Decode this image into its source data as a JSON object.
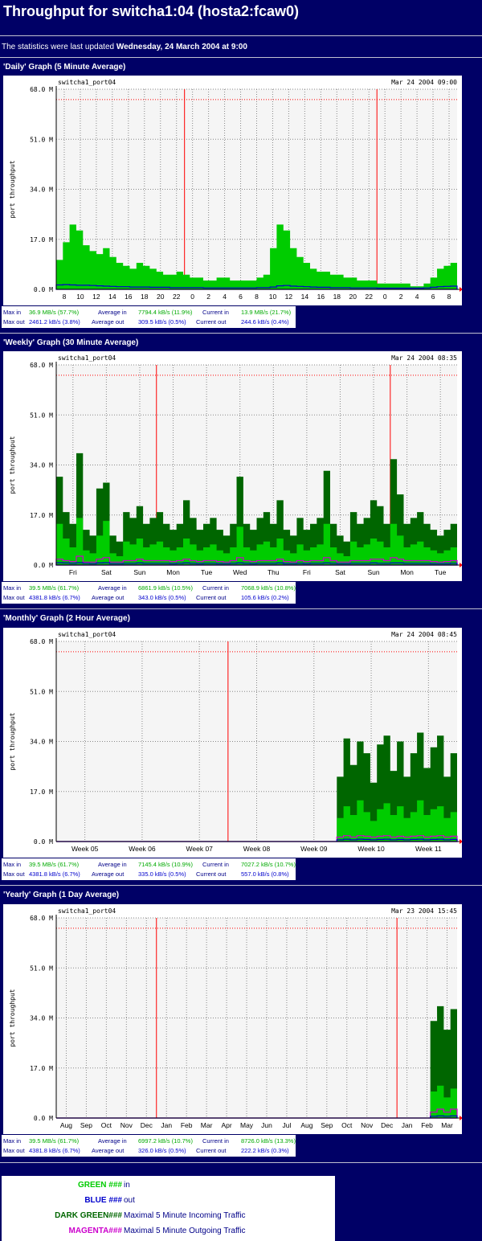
{
  "page": {
    "title": "Throughput for switcha1:04 (hosta2:fcaw0)",
    "updated_prefix": "The statistics were last updated",
    "updated_value": "Wednesday, 24 March 2004 at 9:00"
  },
  "chart_data": [
    {
      "type": "area",
      "section_title": "'Daily' Graph (5 Minute Average)",
      "plot_label": "switcha1_port04",
      "timestamp": "Mar 24 2004 09:00",
      "ylabel": "port throughput",
      "ylim": [
        0,
        68
      ],
      "yticks": [
        "0.0 M",
        "17.0 M",
        "34.0 M",
        "51.0 M",
        "68.0 M"
      ],
      "x_ticks": [
        "8",
        "10",
        "12",
        "14",
        "16",
        "18",
        "20",
        "22",
        "0",
        "2",
        "4",
        "6",
        "8",
        "10",
        "12",
        "14",
        "16",
        "18",
        "20",
        "22",
        "0",
        "2",
        "4",
        "6",
        "8"
      ],
      "dividers_at": [
        "0",
        "0"
      ],
      "max_line": 64.5,
      "series": [
        {
          "name": "in",
          "color": "#00cc00",
          "values": [
            10,
            16,
            22,
            20,
            15,
            13,
            12,
            14,
            11,
            9,
            8,
            7,
            9,
            8,
            7,
            6,
            5,
            5,
            6,
            5,
            4,
            4,
            3,
            3,
            4,
            4,
            3,
            3,
            3,
            3,
            4,
            5,
            14,
            22,
            20,
            14,
            11,
            9,
            7,
            6,
            6,
            5,
            5,
            4,
            4,
            3,
            3,
            3,
            2,
            2,
            2,
            2,
            2,
            1,
            1,
            2,
            4,
            7,
            8,
            9
          ]
        },
        {
          "name": "out",
          "color": "#0000cc",
          "values": [
            1.5,
            1.6,
            1.5,
            1.4,
            1.4,
            1.3,
            1.2,
            1.1,
            1.0,
            0.9,
            0.9,
            0.8,
            0.8,
            0.8,
            0.7,
            0.7,
            0.7,
            0.6,
            0.6,
            0.6,
            0.6,
            0.6,
            0.5,
            0.5,
            0.5,
            0.5,
            0.5,
            0.5,
            0.5,
            0.5,
            0.6,
            0.6,
            0.8,
            1.2,
            1.3,
            1.1,
            1.0,
            0.9,
            0.8,
            0.7,
            0.7,
            0.6,
            0.6,
            0.6,
            0.5,
            0.5,
            0.5,
            0.5,
            0.4,
            0.4,
            0.4,
            0.4,
            0.4,
            0.4,
            0.4,
            0.5,
            0.7,
            0.9,
            1.0,
            1.1
          ]
        }
      ],
      "stats": {
        "max_in": "36.9 MB/s (57.7%)",
        "avg_in": "7794.4 kB/s (11.9%)",
        "cur_in": "13.9 MB/s (21.7%)",
        "max_out": "2461.2 kB/s (3.8%)",
        "avg_out": "309.5 kB/s (0.5%)",
        "cur_out": "244.6 kB/s (0.4%)"
      }
    },
    {
      "type": "area",
      "section_title": "'Weekly' Graph (30 Minute Average)",
      "plot_label": "switcha1_port04",
      "timestamp": "Mar 24 2004 08:35",
      "ylabel": "port throughput",
      "ylim": [
        0,
        68
      ],
      "yticks": [
        "0.0 M",
        "17.0 M",
        "34.0 M",
        "51.0 M",
        "68.0 M"
      ],
      "x_ticks": [
        "Fri",
        "Sat",
        "Sun",
        "Mon",
        "Tue",
        "Wed",
        "Thu",
        "Fri",
        "Sat",
        "Sun",
        "Mon",
        "Tue"
      ],
      "dividers_at": [
        "Mon",
        "Mon"
      ],
      "max_line": 64.5,
      "series": [
        {
          "name": "in",
          "color": "#00cc00",
          "values": [
            14,
            9,
            6,
            16,
            5,
            4,
            10,
            15,
            4,
            3,
            8,
            7,
            9,
            6,
            7,
            8,
            6,
            5,
            6,
            9,
            7,
            5,
            6,
            7,
            5,
            4,
            6,
            13,
            6,
            5,
            7,
            8,
            6,
            9,
            5,
            4,
            7,
            5,
            6,
            7,
            14,
            6,
            4,
            3,
            8,
            6,
            7,
            9,
            8,
            6,
            14,
            10,
            6,
            7,
            8,
            6,
            5,
            4,
            5,
            6
          ]
        },
        {
          "name": "out",
          "color": "#0000cc",
          "values": [
            0.8,
            0.7,
            0.6,
            0.8,
            0.6,
            0.5,
            0.7,
            0.8,
            0.5,
            0.5,
            0.6,
            0.6,
            0.7,
            0.6,
            0.6,
            0.6,
            0.6,
            0.5,
            0.6,
            0.7,
            0.6,
            0.5,
            0.6,
            0.6,
            0.5,
            0.5,
            0.6,
            0.7,
            0.6,
            0.5,
            0.6,
            0.6,
            0.6,
            0.7,
            0.5,
            0.5,
            0.6,
            0.5,
            0.6,
            0.6,
            0.7,
            0.6,
            0.5,
            0.5,
            0.6,
            0.6,
            0.6,
            0.7,
            0.6,
            0.6,
            0.7,
            0.7,
            0.6,
            0.6,
            0.6,
            0.6,
            0.5,
            0.5,
            0.5,
            0.6
          ]
        },
        {
          "name": "max in",
          "color": "#006600",
          "values": [
            30,
            18,
            14,
            38,
            12,
            10,
            26,
            28,
            10,
            8,
            18,
            16,
            20,
            14,
            16,
            18,
            14,
            12,
            14,
            22,
            16,
            12,
            14,
            16,
            12,
            10,
            14,
            30,
            14,
            12,
            16,
            18,
            14,
            22,
            12,
            10,
            16,
            12,
            14,
            16,
            32,
            14,
            10,
            8,
            18,
            14,
            16,
            22,
            20,
            14,
            36,
            24,
            14,
            16,
            18,
            14,
            12,
            10,
            12,
            14
          ]
        },
        {
          "name": "max out",
          "color": "#cc00cc",
          "values": [
            2,
            1.5,
            1.2,
            3,
            1,
            1,
            2,
            2.5,
            1,
            1,
            1.5,
            1.5,
            2,
            1.5,
            1.5,
            1.5,
            1.5,
            1.2,
            1.5,
            2,
            1.5,
            1.2,
            1.5,
            1.5,
            1.2,
            1,
            1.5,
            2.5,
            1.5,
            1.2,
            1.5,
            1.5,
            1.5,
            2,
            1.2,
            1,
            1.5,
            1.2,
            1.5,
            1.5,
            2.5,
            1.5,
            1,
            1,
            1.5,
            1.5,
            1.5,
            2,
            2,
            1.5,
            2.5,
            2,
            1.5,
            1.5,
            1.5,
            1.5,
            1.2,
            1,
            1.2,
            1.5
          ]
        }
      ],
      "stats": {
        "max_in": "39.5 MB/s (61.7%)",
        "avg_in": "6861.9 kB/s (10.5%)",
        "cur_in": "7068.9 kB/s (10.8%)",
        "max_out": "4381.8 kB/s (6.7%)",
        "avg_out": "343.0 kB/s (0.5%)",
        "cur_out": "105.6 kB/s (0.2%)"
      }
    },
    {
      "type": "area",
      "section_title": "'Monthly' Graph (2 Hour Average)",
      "plot_label": "switcha1_port04",
      "timestamp": "Mar 24 2004 08:45",
      "ylabel": "port throughput",
      "ylim": [
        0,
        68
      ],
      "yticks": [
        "0.0 M",
        "17.0 M",
        "34.0 M",
        "51.0 M",
        "68.0 M"
      ],
      "x_ticks": [
        "Week 05",
        "Week 06",
        "Week 07",
        "Week 08",
        "Week 09",
        "Week 10",
        "Week 11"
      ],
      "dividers_at": [
        "Week 08"
      ],
      "max_line": 64.5,
      "series": [
        {
          "name": "in",
          "color": "#00cc00",
          "values": [
            0,
            0,
            0,
            0,
            0,
            0,
            0,
            0,
            0,
            0,
            0,
            0,
            0,
            0,
            0,
            0,
            0,
            0,
            0,
            0,
            0,
            0,
            0,
            0,
            0,
            0,
            0,
            0,
            0,
            0,
            0,
            0,
            0,
            0,
            0,
            0,
            0,
            0,
            0,
            0,
            0,
            0,
            8,
            12,
            9,
            14,
            10,
            7,
            11,
            13,
            9,
            12,
            8,
            10,
            14,
            9,
            11,
            12,
            8,
            10
          ]
        },
        {
          "name": "out",
          "color": "#0000cc",
          "values": [
            0,
            0,
            0,
            0,
            0,
            0,
            0,
            0,
            0,
            0,
            0,
            0,
            0,
            0,
            0,
            0,
            0,
            0,
            0,
            0,
            0,
            0,
            0,
            0,
            0,
            0,
            0,
            0,
            0,
            0,
            0,
            0,
            0,
            0,
            0,
            0,
            0,
            0,
            0,
            0,
            0,
            0,
            0.6,
            0.8,
            0.6,
            0.8,
            0.7,
            0.6,
            0.7,
            0.8,
            0.6,
            0.7,
            0.6,
            0.7,
            0.8,
            0.6,
            0.7,
            0.8,
            0.6,
            0.7
          ]
        },
        {
          "name": "max in",
          "color": "#006600",
          "values": [
            0,
            0,
            0,
            0,
            0,
            0,
            0,
            0,
            0,
            0,
            0,
            0,
            0,
            0,
            0,
            0,
            0,
            0,
            0,
            0,
            0,
            0,
            0,
            0,
            0,
            0,
            0,
            0,
            0,
            0,
            0,
            0,
            0,
            0,
            0,
            0,
            0,
            0,
            0,
            0,
            0,
            0,
            22,
            35,
            26,
            34,
            30,
            20,
            33,
            36,
            24,
            34,
            22,
            30,
            37,
            25,
            32,
            36,
            22,
            30
          ]
        },
        {
          "name": "max out",
          "color": "#cc00cc",
          "values": [
            0,
            0,
            0,
            0,
            0,
            0,
            0,
            0,
            0,
            0,
            0,
            0,
            0,
            0,
            0,
            0,
            0,
            0,
            0,
            0,
            0,
            0,
            0,
            0,
            0,
            0,
            0,
            0,
            0,
            0,
            0,
            0,
            0,
            0,
            0,
            0,
            0,
            0,
            0,
            0,
            0,
            0,
            1.5,
            2,
            1.5,
            2,
            1.8,
            1.5,
            1.8,
            2,
            1.5,
            1.8,
            1.5,
            1.8,
            2,
            1.5,
            1.8,
            2,
            1.5,
            1.8
          ]
        }
      ],
      "stats": {
        "max_in": "39.5 MB/s (61.7%)",
        "avg_in": "7145.4 kB/s (10.9%)",
        "cur_in": "7027.2 kB/s (10.7%)",
        "max_out": "4381.8 kB/s (6.7%)",
        "avg_out": "335.0 kB/s (0.5%)",
        "cur_out": "557.0 kB/s (0.8%)"
      }
    },
    {
      "type": "area",
      "section_title": "'Yearly' Graph (1 Day Average)",
      "plot_label": "switcha1_port04",
      "timestamp": "Mar 23 2004 15:45",
      "ylabel": "port throughput",
      "ylim": [
        0,
        68
      ],
      "yticks": [
        "0.0 M",
        "17.0 M",
        "34.0 M",
        "51.0 M",
        "68.0 M"
      ],
      "x_ticks": [
        "Aug",
        "Sep",
        "Oct",
        "Nov",
        "Dec",
        "Jan",
        "Feb",
        "Mar",
        "Apr",
        "May",
        "Jun",
        "Jul",
        "Aug",
        "Sep",
        "Oct",
        "Nov",
        "Dec",
        "Jan",
        "Feb",
        "Mar"
      ],
      "dividers_at": [
        "Jan",
        "Jan"
      ],
      "max_line": 64.5,
      "series": [
        {
          "name": "in",
          "color": "#00cc00",
          "values": [
            0,
            0,
            0,
            0,
            0,
            0,
            0,
            0,
            0,
            0,
            0,
            0,
            0,
            0,
            0,
            0,
            0,
            0,
            0,
            0,
            0,
            0,
            0,
            0,
            0,
            0,
            0,
            0,
            0,
            0,
            0,
            0,
            0,
            0,
            0,
            0,
            0,
            0,
            0,
            0,
            0,
            0,
            0,
            0,
            0,
            0,
            0,
            0,
            0,
            0,
            0,
            0,
            0,
            0,
            0,
            0,
            9,
            11,
            7,
            10
          ]
        },
        {
          "name": "out",
          "color": "#0000cc",
          "values": [
            0,
            0,
            0,
            0,
            0,
            0,
            0,
            0,
            0,
            0,
            0,
            0,
            0,
            0,
            0,
            0,
            0,
            0,
            0,
            0,
            0,
            0,
            0,
            0,
            0,
            0,
            0,
            0,
            0,
            0,
            0,
            0,
            0,
            0,
            0,
            0,
            0,
            0,
            0,
            0,
            0,
            0,
            0,
            0,
            0,
            0,
            0,
            0,
            0,
            0,
            0,
            0,
            0,
            0,
            0,
            0,
            0.6,
            0.7,
            0.6,
            0.7
          ]
        },
        {
          "name": "max in",
          "color": "#006600",
          "values": [
            0,
            0,
            0,
            0,
            0,
            0,
            0,
            0,
            0,
            0,
            0,
            0,
            0,
            0,
            0,
            0,
            0,
            0,
            0,
            0,
            0,
            0,
            0,
            0,
            0,
            0,
            0,
            0,
            0,
            0,
            0,
            0,
            0,
            0,
            0,
            0,
            0,
            0,
            0,
            0,
            0,
            0,
            0,
            0,
            0,
            0,
            0,
            0,
            0,
            0,
            0,
            0,
            0,
            0,
            0,
            0,
            33,
            38,
            30,
            37
          ]
        },
        {
          "name": "max out",
          "color": "#cc00cc",
          "values": [
            0,
            0,
            0,
            0,
            0,
            0,
            0,
            0,
            0,
            0,
            0,
            0,
            0,
            0,
            0,
            0,
            0,
            0,
            0,
            0,
            0,
            0,
            0,
            0,
            0,
            0,
            0,
            0,
            0,
            0,
            0,
            0,
            0,
            0,
            0,
            0,
            0,
            0,
            0,
            0,
            0,
            0,
            0,
            0,
            0,
            0,
            0,
            0,
            0,
            0,
            0,
            0,
            0,
            0,
            0,
            0,
            2,
            3,
            2,
            3
          ]
        }
      ],
      "stats": {
        "max_in": "39.5 MB/s (61.7%)",
        "avg_in": "6997.2 kB/s (10.7%)",
        "cur_in": "8726.0 kB/s (13.3%)",
        "max_out": "4381.8 kB/s (6.7%)",
        "avg_out": "326.0 kB/s (0.5%)",
        "cur_out": "222.2 kB/s (0.3%)"
      }
    }
  ],
  "stat_labels": {
    "max_in": "Max in",
    "avg_in": "Average in",
    "cur_in": "Current in",
    "max_out": "Max out",
    "avg_out": "Average out",
    "cur_out": "Current out"
  },
  "legend": [
    {
      "color_name": "GREEN ###",
      "color": "#00cc00",
      "desc": "in"
    },
    {
      "color_name": "BLUE ###",
      "color": "#0000cc",
      "desc": "out"
    },
    {
      "color_name": "DARK GREEN###",
      "color": "#006600",
      "desc": "Maximal 5 Minute Incoming Traffic"
    },
    {
      "color_name": "MAGENTA###",
      "color": "#cc00cc",
      "desc": "Maximal 5 Minute Outgoing Traffic"
    }
  ]
}
